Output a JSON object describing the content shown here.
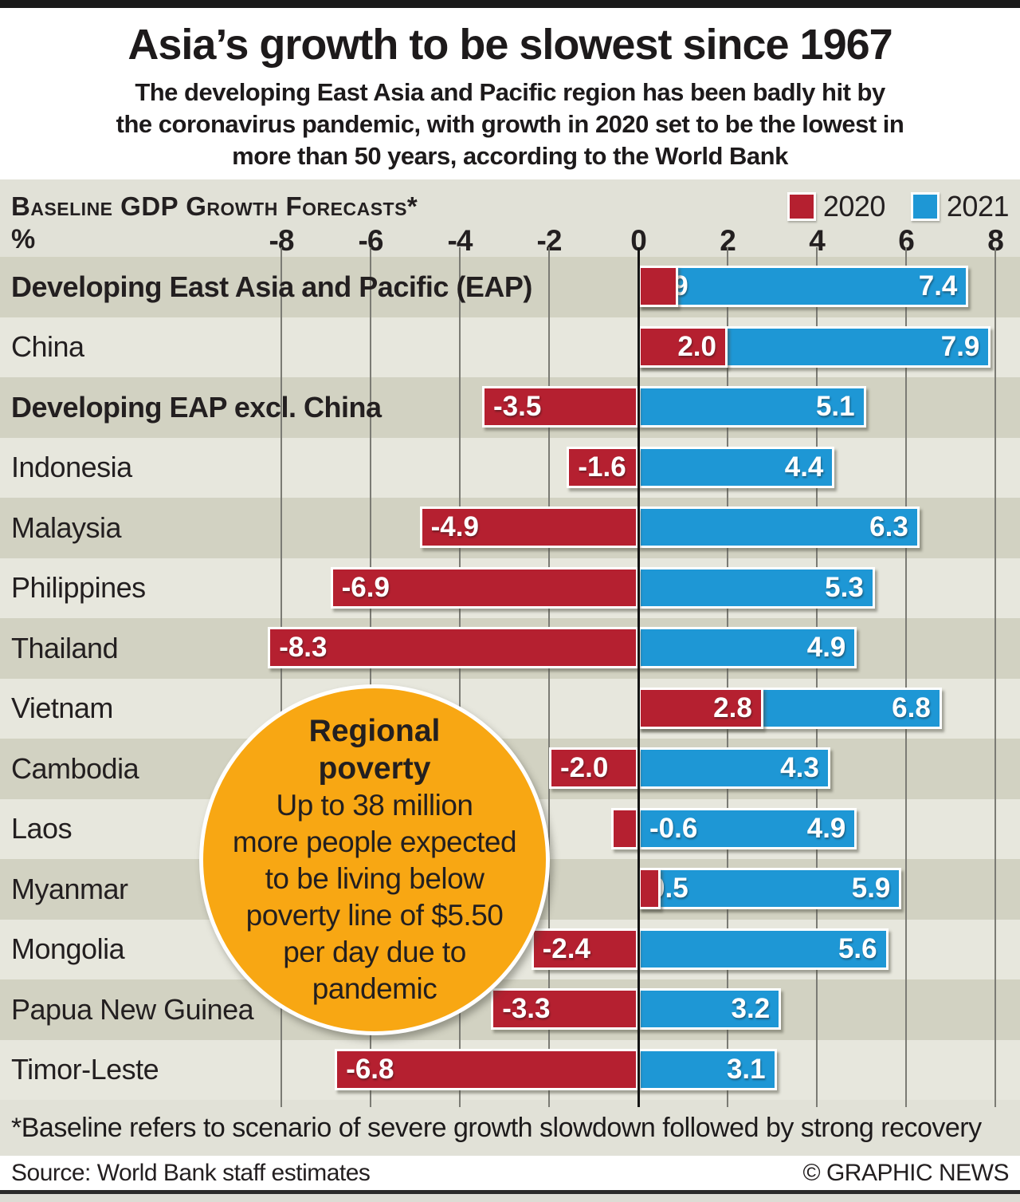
{
  "header": {
    "title": "Asia’s growth to be slowest since 1967",
    "subtitle_lines": [
      "The developing East Asia and Pacific region has been badly hit by",
      "the coronavirus pandemic, with growth in 2020 set to be the lowest in",
      "more than 50 years, according to the World Bank"
    ]
  },
  "chart_data": {
    "type": "bar",
    "orientation": "horizontal",
    "title": "Baseline GDP Growth Forecasts*",
    "axis_unit": "%",
    "x_ticks": [
      -8,
      -6,
      -4,
      -2,
      0,
      2,
      4,
      6,
      8
    ],
    "xlim": [
      -8.9,
      8.6
    ],
    "grid": true,
    "legend_position": "top-right",
    "legend": [
      {
        "label": "2020",
        "color": "#b52030"
      },
      {
        "label": "2021",
        "color": "#1e97d5"
      }
    ],
    "categories": [
      "Developing East Asia and Pacific (EAP)",
      "China",
      "Developing EAP excl. China",
      "Indonesia",
      "Malaysia",
      "Philippines",
      "Thailand",
      "Vietnam",
      "Cambodia",
      "Laos",
      "Myanmar",
      "Mongolia",
      "Papua New Guinea",
      "Timor-Leste"
    ],
    "bold_indices": [
      0,
      2
    ],
    "series": [
      {
        "name": "2020",
        "color": "#b52030",
        "values": [
          0.9,
          2.0,
          -3.5,
          -1.6,
          -4.9,
          -6.9,
          -8.3,
          2.8,
          -2.0,
          -0.6,
          0.5,
          -2.4,
          -3.3,
          -6.8
        ]
      },
      {
        "name": "2021",
        "color": "#1e97d5",
        "values": [
          7.4,
          7.9,
          5.1,
          4.4,
          6.3,
          5.3,
          4.9,
          6.8,
          4.3,
          4.9,
          5.9,
          5.6,
          3.2,
          3.1
        ]
      }
    ]
  },
  "callout": {
    "color": "#f8a713",
    "title_lines": [
      "Regional",
      "poverty"
    ],
    "body_lines": [
      "Up to 38 million",
      "more people expected",
      "to be living below",
      "poverty line of $5.50",
      "per day due to",
      "pandemic"
    ]
  },
  "footnote": "*Baseline refers to scenario of severe growth slowdown followed by strong recovery",
  "footer": {
    "source": "Source: World Bank staff estimates",
    "credit": "© GRAPHIC NEWS"
  },
  "colors": {
    "row_dark": "#d2d2c2",
    "row_light": "#e7e7dd",
    "panel_bg": "#e1e1d7",
    "red": "#b52030",
    "blue": "#1e97d5",
    "orange": "#f8a713",
    "gridline": "#7b7b74",
    "zero_line": "#141414"
  }
}
